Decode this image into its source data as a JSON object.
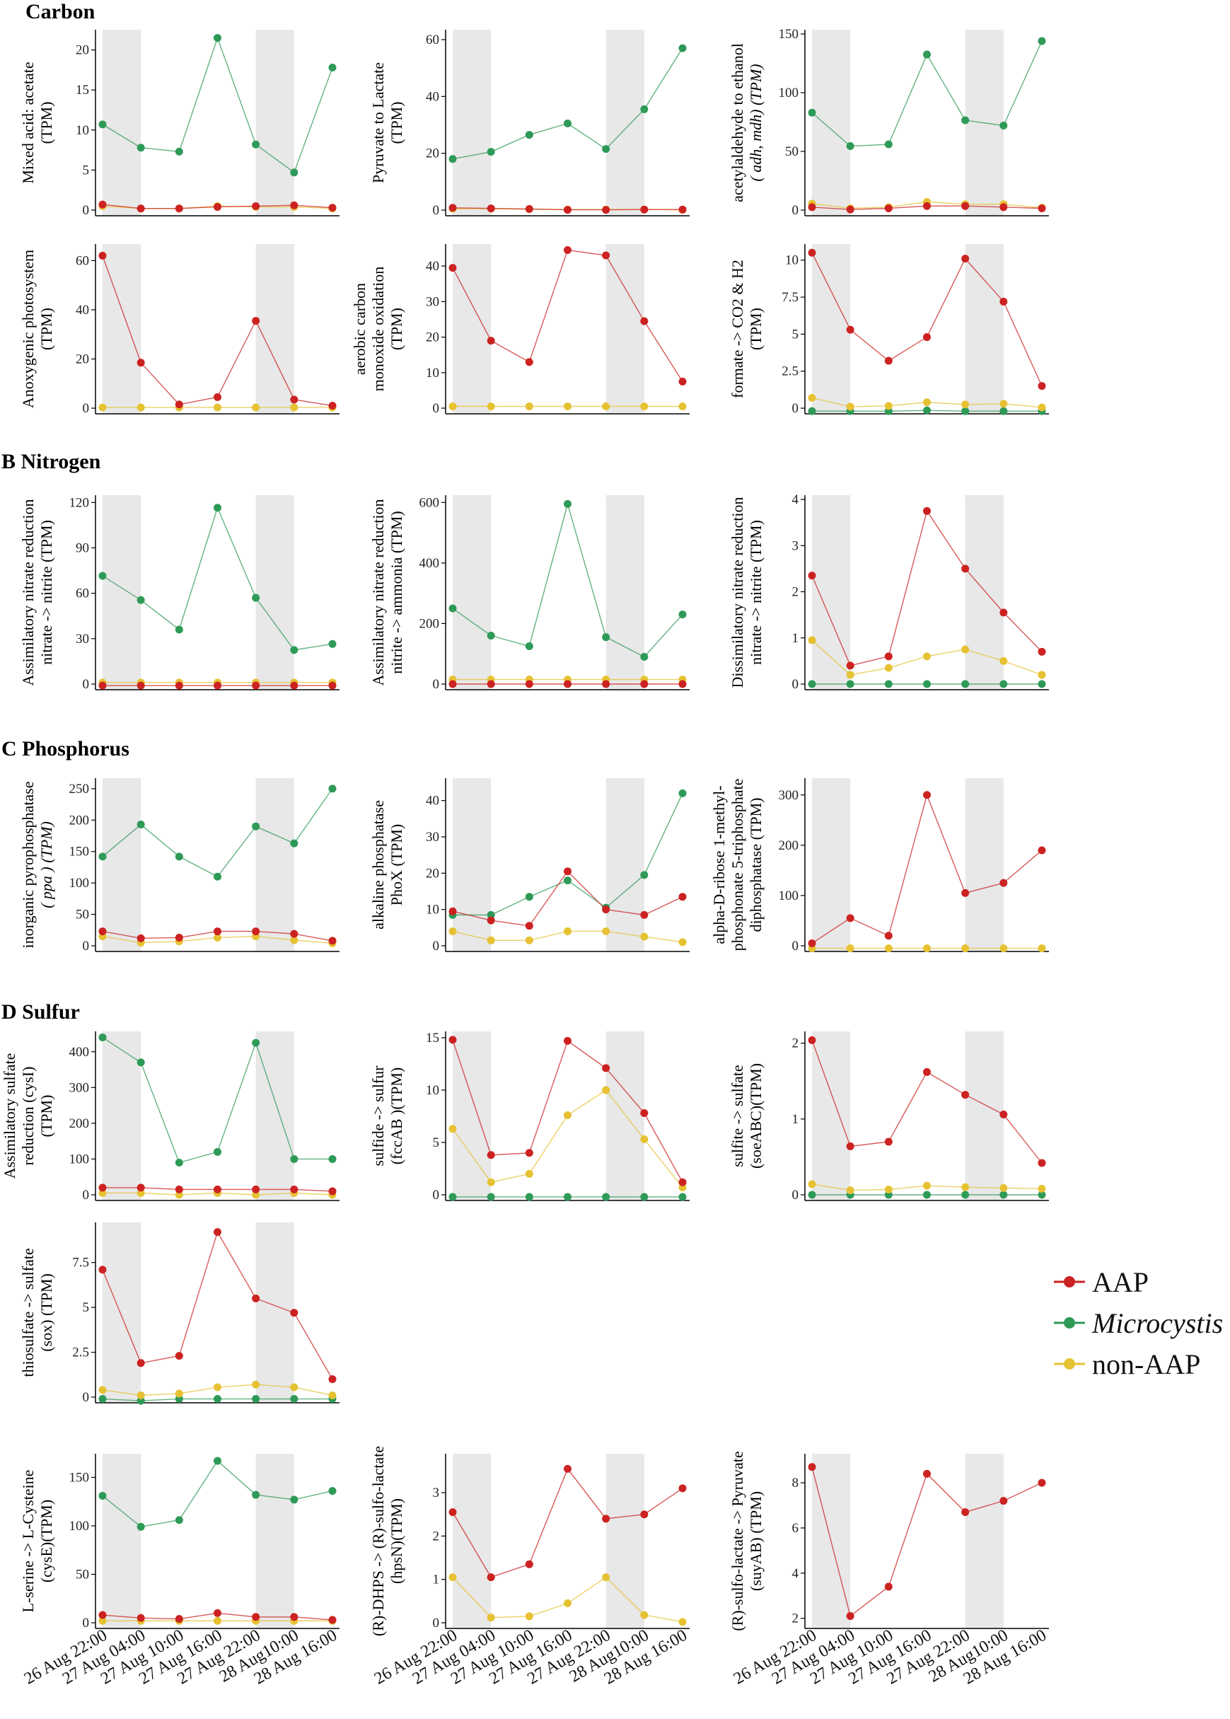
{
  "sections": [
    {
      "id": "A",
      "label": "Carbon"
    },
    {
      "id": "B",
      "label": "B Nitrogen"
    },
    {
      "id": "C",
      "label": "C Phosphorus"
    },
    {
      "id": "D",
      "label": "D Sulfur"
    }
  ],
  "x_labels": [
    "26 Aug 22:00",
    "27 Aug 04:00",
    "27 Aug 10:00",
    "27 Aug 16:00",
    "27 Aug 22:00",
    "28 Aug10:00",
    "28 Aug 16:00"
  ],
  "legend": [
    {
      "name": "AAP",
      "italic": false,
      "color": "#cc2222"
    },
    {
      "name": "Microcystis",
      "italic": true,
      "color": "#2e9a57"
    },
    {
      "name": "non-AAP",
      "italic": false,
      "color": "#e6c233"
    }
  ],
  "colors": {
    "AAP": "#cc2222",
    "Microcystis": "#2e9a57",
    "non-AAP": "#e6c233",
    "shade": "#e8e8e8"
  },
  "chart_data": [
    {
      "type": "line",
      "row": 0,
      "col": 0,
      "ylabel": [
        "Mixed acid: acetate",
        "(TPM)"
      ],
      "ylim": [
        0,
        22
      ],
      "yticks": [
        0,
        5,
        10,
        15,
        20
      ],
      "series": [
        {
          "name": "Microcystis",
          "values": [
            10.7,
            7.8,
            7.3,
            21.5,
            8.2,
            4.7,
            17.8
          ]
        },
        {
          "name": "non-AAP",
          "values": [
            0.5,
            0.2,
            0.2,
            0.5,
            0.4,
            0.4,
            0.2
          ]
        },
        {
          "name": "AAP",
          "values": [
            0.7,
            0.2,
            0.2,
            0.4,
            0.5,
            0.6,
            0.3
          ]
        }
      ]
    },
    {
      "type": "line",
      "row": 0,
      "col": 1,
      "ylabel": [
        "Pyruvate to Lactate",
        "(TPM)"
      ],
      "ylim": [
        0,
        62
      ],
      "yticks": [
        0,
        20,
        40,
        60
      ],
      "series": [
        {
          "name": "Microcystis",
          "values": [
            18,
            20.5,
            26.5,
            30.5,
            21.5,
            35.5,
            57
          ]
        },
        {
          "name": "non-AAP",
          "values": [
            0.5,
            0.5,
            0.3,
            0.2,
            0.2,
            0.2,
            0.1
          ]
        },
        {
          "name": "AAP",
          "values": [
            0.8,
            0.6,
            0.4,
            0.1,
            0.1,
            0.2,
            0.2
          ]
        }
      ]
    },
    {
      "type": "line",
      "row": 0,
      "col": 2,
      "ylabel": [
        "acetylaldehyde to ethanol",
        "( adh, mdh) (TPM)"
      ],
      "ylabel_italic": [
        false,
        true
      ],
      "ylim": [
        0,
        150
      ],
      "yticks": [
        0,
        50,
        100,
        150
      ],
      "series": [
        {
          "name": "Microcystis",
          "values": [
            83,
            54.5,
            56,
            132.5,
            76.5,
            72,
            144
          ]
        },
        {
          "name": "non-AAP",
          "values": [
            5.5,
            1.5,
            2.5,
            7,
            5,
            5,
            2
          ]
        },
        {
          "name": "AAP",
          "values": [
            2.5,
            0.5,
            1.5,
            3.5,
            3.5,
            2.5,
            1.5
          ]
        }
      ]
    },
    {
      "type": "line",
      "row": 1,
      "col": 0,
      "ylabel": [
        "Anoxygenic photosystem",
        "(TPM)"
      ],
      "ylim": [
        0,
        65
      ],
      "yticks": [
        0,
        20,
        40,
        60
      ],
      "series": [
        {
          "name": "non-AAP",
          "values": [
            0.3,
            0.3,
            0.3,
            0.3,
            0.3,
            0.3,
            0.3
          ]
        },
        {
          "name": "AAP",
          "values": [
            62,
            18.5,
            1.5,
            4.5,
            35.5,
            3.5,
            1
          ]
        }
      ]
    },
    {
      "type": "line",
      "row": 1,
      "col": 1,
      "ylabel": [
        "aerobic carbon",
        "monoxide oxidation",
        "(TPM)"
      ],
      "ylim": [
        0,
        45
      ],
      "yticks": [
        0,
        10,
        20,
        30,
        40
      ],
      "series": [
        {
          "name": "non-AAP",
          "values": [
            0.5,
            0.5,
            0.5,
            0.5,
            0.5,
            0.5,
            0.5
          ]
        },
        {
          "name": "AAP",
          "values": [
            39.5,
            19,
            13,
            44.5,
            43,
            24.5,
            7.5
          ]
        }
      ]
    },
    {
      "type": "line",
      "row": 1,
      "col": 2,
      "ylabel": [
        "formate -> CO2 & H2",
        "(TPM)"
      ],
      "ylim": [
        0,
        10.8
      ],
      "yticks": [
        0,
        2.5,
        5,
        7.5,
        10
      ],
      "series": [
        {
          "name": "Microcystis",
          "values": [
            -0.2,
            -0.2,
            -0.2,
            -0.15,
            -0.2,
            -0.2,
            -0.2
          ]
        },
        {
          "name": "non-AAP",
          "values": [
            0.7,
            0.1,
            0.15,
            0.4,
            0.25,
            0.3,
            0.05
          ]
        },
        {
          "name": "AAP",
          "values": [
            10.5,
            5.3,
            3.2,
            4.8,
            10.1,
            7.2,
            1.5
          ]
        }
      ]
    },
    {
      "type": "line",
      "row": 2,
      "col": 0,
      "ylabel": [
        "Assimilatory nitrate reduction",
        "nitrate -> nitrite (TPM)"
      ],
      "ylim": [
        0,
        122
      ],
      "yticks": [
        0,
        30,
        60,
        90,
        120
      ],
      "series": [
        {
          "name": "Microcystis",
          "values": [
            71.5,
            55.5,
            36,
            116.5,
            57,
            22.5,
            26.5
          ]
        },
        {
          "name": "non-AAP",
          "values": [
            1,
            1,
            1,
            1,
            1,
            1,
            1
          ]
        },
        {
          "name": "AAP",
          "values": [
            -1,
            -1,
            -1,
            -1,
            -1,
            -1,
            -1
          ]
        }
      ]
    },
    {
      "type": "line",
      "row": 2,
      "col": 1,
      "ylabel": [
        "Assimilatory nitrate reduction",
        "nitrite -> ammonia (TPM)"
      ],
      "ylim": [
        0,
        610
      ],
      "yticks": [
        0,
        200,
        400,
        600
      ],
      "series": [
        {
          "name": "Microcystis",
          "values": [
            250,
            160,
            125,
            595,
            155,
            90,
            230
          ]
        },
        {
          "name": "non-AAP",
          "values": [
            15,
            15,
            15,
            15,
            15,
            15,
            15
          ]
        },
        {
          "name": "AAP",
          "values": [
            0,
            0,
            0,
            0,
            0,
            0,
            0
          ]
        }
      ]
    },
    {
      "type": "line",
      "row": 2,
      "col": 2,
      "ylabel": [
        "Dissimilatory nitrate reduction",
        "nitrate -> nitrite (TPM)"
      ],
      "ylim": [
        0,
        4
      ],
      "yticks": [
        0,
        1,
        2,
        3,
        4
      ],
      "series": [
        {
          "name": "Microcystis",
          "values": [
            0,
            0,
            0,
            0,
            0,
            0,
            0
          ]
        },
        {
          "name": "non-AAP",
          "values": [
            0.95,
            0.2,
            0.35,
            0.6,
            0.75,
            0.5,
            0.2
          ]
        },
        {
          "name": "AAP",
          "values": [
            2.35,
            0.4,
            0.6,
            3.75,
            2.5,
            1.55,
            0.7
          ]
        }
      ]
    },
    {
      "type": "line",
      "row": 3,
      "col": 0,
      "ylabel": [
        "inorganic pyrophosphatase",
        "( ppa ) (TPM)"
      ],
      "ylabel_italic": [
        false,
        true
      ],
      "ylim": [
        0,
        260
      ],
      "yticks": [
        0,
        50,
        100,
        150,
        200,
        250
      ],
      "series": [
        {
          "name": "Microcystis",
          "values": [
            142,
            193,
            142,
            110,
            190,
            163,
            250
          ]
        },
        {
          "name": "non-AAP",
          "values": [
            15,
            5,
            7,
            13,
            15,
            9,
            4
          ]
        },
        {
          "name": "AAP",
          "values": [
            23,
            12,
            13,
            23,
            23,
            19,
            8
          ]
        }
      ]
    },
    {
      "type": "line",
      "row": 3,
      "col": 1,
      "ylabel": [
        "alkaline phosphatase",
        "PhoX (TPM)"
      ],
      "ylim": [
        0,
        45
      ],
      "yticks": [
        0,
        10,
        20,
        30,
        40
      ],
      "series": [
        {
          "name": "Microcystis",
          "values": [
            8.5,
            8.5,
            13.5,
            18,
            10.5,
            19.5,
            42
          ]
        },
        {
          "name": "non-AAP",
          "values": [
            4,
            1.5,
            1.5,
            4,
            4,
            2.5,
            1
          ]
        },
        {
          "name": "AAP",
          "values": [
            9.5,
            7,
            5.5,
            20.5,
            10,
            8.5,
            13.5
          ]
        }
      ]
    },
    {
      "type": "line",
      "row": 3,
      "col": 2,
      "ylabel": [
        "alpha-D-ribose 1-methyl-",
        "phosphonate  5-triphosphate",
        "diphosphatase (TPM)"
      ],
      "ylim": [
        0,
        325
      ],
      "yticks": [
        0,
        100,
        200,
        300
      ],
      "series": [
        {
          "name": "non-AAP",
          "values": [
            -5,
            -5,
            -5,
            -5,
            -5,
            -5,
            -5
          ]
        },
        {
          "name": "AAP",
          "values": [
            5,
            55,
            20,
            300,
            105,
            125,
            190
          ]
        }
      ]
    },
    {
      "type": "line",
      "row": 4,
      "col": 0,
      "ylabel": [
        "Assimilatory sulfate",
        "reduction (cysI)",
        "(TPM)"
      ],
      "ylim": [
        0,
        445
      ],
      "yticks": [
        0,
        100,
        200,
        300,
        400
      ],
      "series": [
        {
          "name": "Microcystis",
          "values": [
            440,
            370,
            90,
            120,
            425,
            100,
            100
          ]
        },
        {
          "name": "non-AAP",
          "values": [
            5,
            5,
            0,
            5,
            0,
            5,
            0
          ]
        },
        {
          "name": "AAP",
          "values": [
            20,
            20,
            15,
            15,
            15,
            15,
            10
          ]
        }
      ]
    },
    {
      "type": "line",
      "row": 4,
      "col": 1,
      "ylabel": [
        "sulfide -> sulfur",
        "(fccAB )(TPM)"
      ],
      "ylim": [
        0,
        15.2
      ],
      "yticks": [
        0,
        5,
        10,
        15
      ],
      "series": [
        {
          "name": "Microcystis",
          "values": [
            -0.2,
            -0.2,
            -0.2,
            -0.2,
            -0.2,
            -0.2,
            -0.2
          ]
        },
        {
          "name": "non-AAP",
          "values": [
            6.3,
            1.2,
            2,
            7.6,
            10,
            5.3,
            0.7
          ]
        },
        {
          "name": "AAP",
          "values": [
            14.8,
            3.8,
            4,
            14.7,
            12.1,
            7.8,
            1.2
          ]
        }
      ]
    },
    {
      "type": "line",
      "row": 4,
      "col": 2,
      "ylabel": [
        "sulfite -> sulfate",
        "(soeABC)(TPM)"
      ],
      "ylim": [
        0,
        2.1
      ],
      "yticks": [
        0,
        1,
        2
      ],
      "series": [
        {
          "name": "Microcystis",
          "values": [
            0,
            0,
            0,
            0,
            0,
            0,
            0
          ]
        },
        {
          "name": "non-AAP",
          "values": [
            0.14,
            0.06,
            0.07,
            0.12,
            0.1,
            0.09,
            0.08
          ]
        },
        {
          "name": "AAP",
          "values": [
            2.04,
            0.64,
            0.7,
            1.62,
            1.32,
            1.06,
            0.42
          ]
        }
      ]
    },
    {
      "type": "line",
      "row": 5,
      "col": 0,
      "ylabel": [
        "thiosulfate -> sulfate",
        "(sox) (TPM)"
      ],
      "ylim": [
        0,
        9.5
      ],
      "yticks": [
        0,
        2.5,
        5,
        7.5
      ],
      "series": [
        {
          "name": "Microcystis",
          "values": [
            -0.1,
            -0.2,
            -0.1,
            -0.1,
            -0.1,
            -0.1,
            -0.1
          ]
        },
        {
          "name": "non-AAP",
          "values": [
            0.4,
            0.1,
            0.2,
            0.55,
            0.7,
            0.55,
            0.1
          ]
        },
        {
          "name": "AAP",
          "values": [
            7.1,
            1.9,
            2.3,
            9.2,
            5.5,
            4.7,
            1
          ]
        }
      ]
    },
    {
      "type": "line",
      "row": 6,
      "col": 0,
      "ylabel": [
        "L-serine -> L-Cysteine",
        "(cysE)(TPM)"
      ],
      "ylim": [
        0,
        170
      ],
      "yticks": [
        0,
        50,
        100,
        150
      ],
      "series": [
        {
          "name": "Microcystis",
          "values": [
            131,
            99,
            106,
            167,
            132,
            127,
            136
          ]
        },
        {
          "name": "non-AAP",
          "values": [
            2,
            2,
            2,
            2,
            2,
            2,
            2
          ]
        },
        {
          "name": "AAP",
          "values": [
            8,
            5,
            4,
            10,
            6,
            6,
            3
          ]
        }
      ]
    },
    {
      "type": "line",
      "row": 6,
      "col": 1,
      "ylabel": [
        "(R)-DHPS -> (R)-sulfo-lactate",
        "(hpsN)(TPM)"
      ],
      "ylim": [
        0,
        3.8
      ],
      "yticks": [
        0,
        1,
        2,
        3
      ],
      "series": [
        {
          "name": "non-AAP",
          "values": [
            1.05,
            0.12,
            0.15,
            0.45,
            1.05,
            0.18,
            0.02
          ]
        },
        {
          "name": "AAP",
          "values": [
            2.55,
            1.05,
            1.35,
            3.55,
            2.4,
            2.5,
            3.1
          ]
        }
      ]
    },
    {
      "type": "line",
      "row": 6,
      "col": 2,
      "ylabel": [
        "(R)-sulfo-lactate -> Pyruvate",
        "(suyAB) (TPM)"
      ],
      "ylim": [
        1.8,
        9.1
      ],
      "yticks": [
        2,
        4,
        6,
        8
      ],
      "series": [
        {
          "name": "AAP",
          "values": [
            8.7,
            2.1,
            3.4,
            8.4,
            6.7,
            7.2,
            8
          ]
        }
      ]
    }
  ]
}
